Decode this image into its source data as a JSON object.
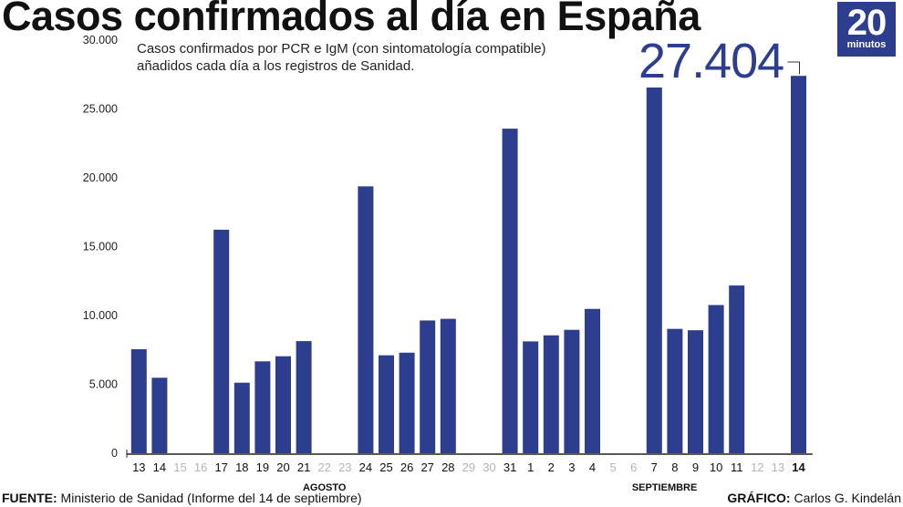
{
  "title": "Casos confirmados al día en España",
  "logo": {
    "number": "20",
    "word": "minutos"
  },
  "subtitle_line1": "Casos confirmados por PCR e IgM (con sintomatología compatible)",
  "subtitle_line2": "añadidos cada día a los registros de Sanidad.",
  "highlight_value": "27.404",
  "footer_source_label": "FUENTE:",
  "footer_source_text": " Ministerio de Sanidad (Informe del 14 de septiembre)",
  "footer_credit_label": "GRÁFICO:",
  "footer_credit_text": " Carlos G. Kindelán",
  "colors": {
    "bar": "#2e3e8f",
    "missing_label": "#b4b4b4"
  },
  "chart_data": {
    "type": "bar",
    "title": "Casos confirmados al día en España",
    "categories": [
      "13",
      "14",
      "15",
      "16",
      "17",
      "18",
      "19",
      "20",
      "21",
      "22",
      "23",
      "24",
      "25",
      "26",
      "27",
      "28",
      "29",
      "30",
      "31",
      "1",
      "2",
      "3",
      "4",
      "5",
      "6",
      "7",
      "8",
      "9",
      "10",
      "11",
      "12",
      "13",
      "14"
    ],
    "values": [
      7550,
      5480,
      null,
      null,
      16230,
      5120,
      6670,
      7040,
      8140,
      null,
      null,
      19380,
      7110,
      7300,
      9640,
      9760,
      null,
      null,
      23570,
      8120,
      8560,
      8960,
      10480,
      null,
      null,
      26560,
      9030,
      8930,
      10760,
      12180,
      null,
      null,
      27404
    ],
    "ylim": [
      0,
      30000
    ],
    "yticks": [
      "0",
      "5.000",
      "10.000",
      "15.000",
      "20.000",
      "25.000",
      "30.000"
    ],
    "months": [
      "AGOSTO",
      "SEPTIEMBRE"
    ],
    "highlighted_category": "14"
  }
}
